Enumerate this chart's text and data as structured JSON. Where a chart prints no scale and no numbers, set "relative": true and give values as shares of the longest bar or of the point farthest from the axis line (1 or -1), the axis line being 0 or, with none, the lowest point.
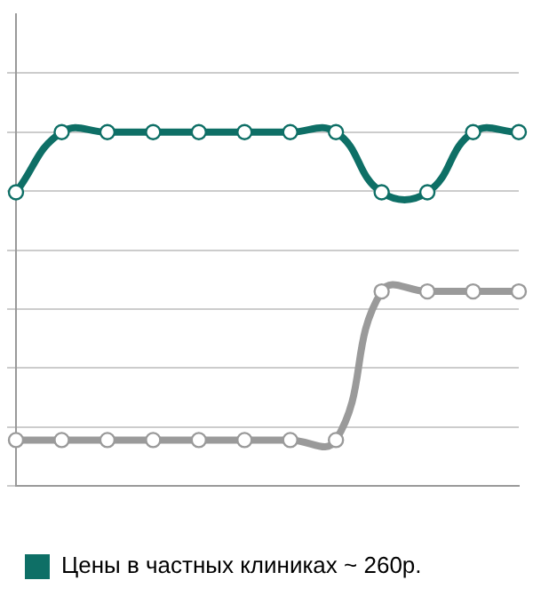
{
  "chart_data": {
    "type": "line",
    "relative": true,
    "categories": [
      null,
      null,
      null,
      null,
      null,
      null,
      null,
      null,
      null,
      null,
      null,
      null
    ],
    "series": [
      {
        "name": "Цены в частных клиниках ~ 260р.",
        "color": "#0e6f66",
        "values": [
          0.83,
          1,
          1,
          1,
          1,
          1,
          1,
          1,
          0.83,
          0.83,
          1,
          1
        ]
      },
      {
        "color": "#9a9a9a",
        "values": [
          0.13,
          0.13,
          0.13,
          0.13,
          0.13,
          0.13,
          0.13,
          0.13,
          0.55,
          0.55,
          0.55,
          0.55
        ]
      }
    ],
    "grid": "y",
    "legend": "bottom",
    "marker": "circle",
    "line_style": "solid"
  }
}
